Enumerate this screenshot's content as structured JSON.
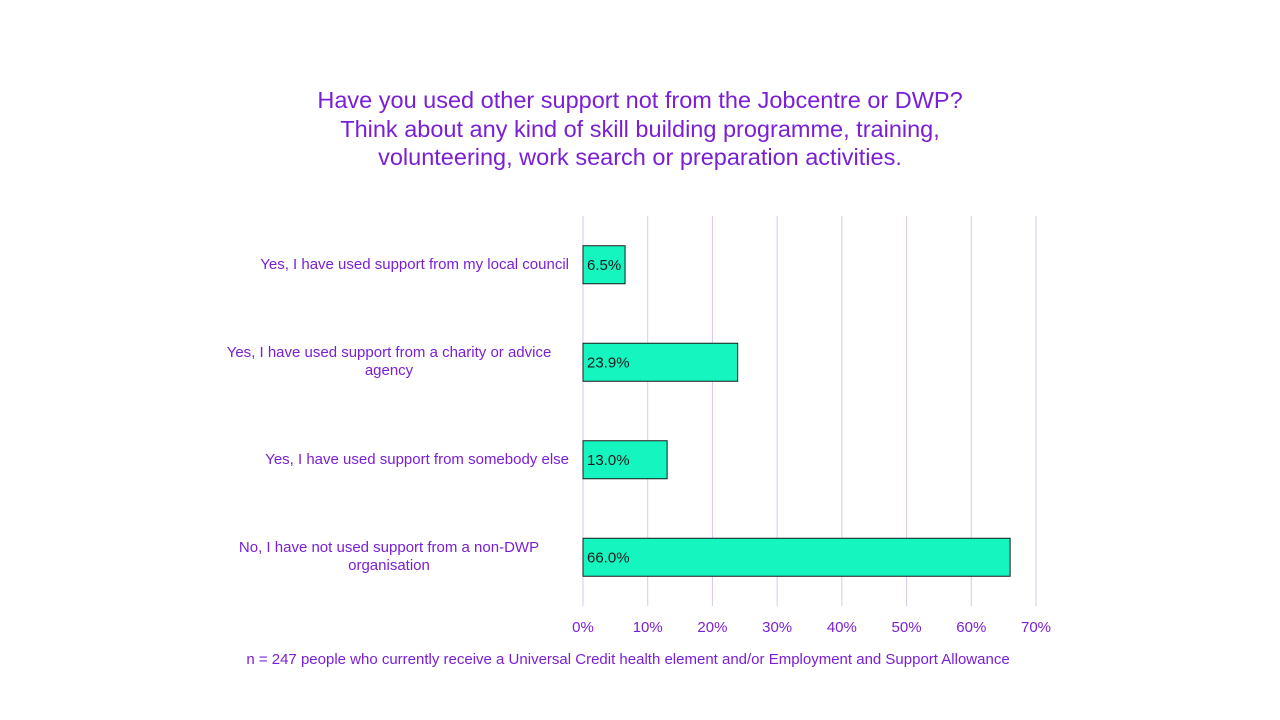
{
  "chart_data": {
    "type": "bar",
    "orientation": "horizontal",
    "title": "Have you used other support not from the Jobcentre or DWP? Think about any kind of skill building programme, training, volunteering, work search or preparation activities.",
    "categories": [
      "Yes, I have used support from my local council",
      "Yes, I have used support from a charity or advice agency",
      "Yes, I have used support from somebody else",
      "No, I have not used support from a non-DWP organisation"
    ],
    "values": [
      6.5,
      23.9,
      13.0,
      66.0
    ],
    "data_labels": [
      "6.5%",
      "23.9%",
      "13.0%",
      "66.0%"
    ],
    "xlim": [
      0,
      70
    ],
    "x_ticks": [
      "0%",
      "10%",
      "20%",
      "30%",
      "40%",
      "50%",
      "60%",
      "70%"
    ],
    "grid": true,
    "note": "n = 247 people who currently receive a Universal Credit health element and/or Employment and Support Allowance",
    "colors": {
      "bar": "#14f5c0",
      "bar_border": "#1a1a1a",
      "text": "#7a1fd6",
      "gridline": "#d9c7f0",
      "data_label": "#1a1a1a"
    }
  }
}
